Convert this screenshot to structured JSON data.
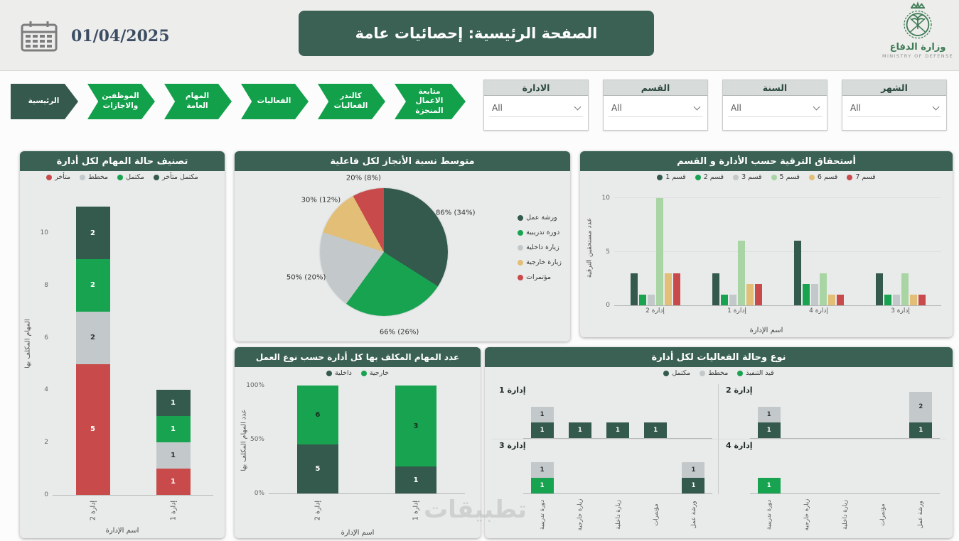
{
  "header": {
    "date": "01/04/2025",
    "title": "الصفحة الرئيسية: إحصائيات عامة",
    "ministry_ar": "وزارة الدفاع",
    "ministry_en": "MINISTRY OF DEFENSE"
  },
  "nav": {
    "items": [
      {
        "label": "الرئيسية",
        "active": true
      },
      {
        "label": "الموظفين والاجازات",
        "active": false
      },
      {
        "label": "المهام العامة",
        "active": false
      },
      {
        "label": "الفعاليات",
        "active": false
      },
      {
        "label": "كالندر الفعاليات",
        "active": false
      },
      {
        "label": "متابعة الاعمال المنجزة",
        "active": false
      }
    ]
  },
  "slicers": [
    {
      "label": "الشهر",
      "value": "All"
    },
    {
      "label": "السنة",
      "value": "All"
    },
    {
      "label": "القسم",
      "value": "All"
    },
    {
      "label": "الادارة",
      "value": "All"
    }
  ],
  "watermark": "تطبيقات",
  "colors": {
    "primary_dark": "#3a6154",
    "nav_green": "#12a04b",
    "series_dark": "#335a4c",
    "series_green": "#18a351",
    "series_gray": "#c3c9cb",
    "series_light_green": "#a9d5a4",
    "series_gold": "#e2be77",
    "series_red": "#c94a4a"
  },
  "chart_data": [
    {
      "type": "bar",
      "variant": "stacked",
      "title": "تصنيف حالة المهام لكل أدارة",
      "xlabel": "اسم الإدارة",
      "ylabel": "المهام المكلف بها",
      "categories": [
        "إدارة 2",
        "إدارة 1"
      ],
      "series": [
        {
          "name": "متأخر",
          "color": "#c94a4a",
          "label_color": "#ffffff",
          "values": [
            5,
            1
          ]
        },
        {
          "name": "مخطط",
          "color": "#c3c9cb",
          "label_color": "#333333",
          "values": [
            2,
            1
          ]
        },
        {
          "name": "مكتمل",
          "color": "#18a351",
          "label_color": "#ffffff",
          "values": [
            2,
            1
          ]
        },
        {
          "name": "مكتمل متأخر",
          "color": "#335a4c",
          "label_color": "#ffffff",
          "values": [
            2,
            1
          ]
        }
      ],
      "ymax": 11.6,
      "yticks": [
        0,
        2,
        4,
        6,
        8,
        10
      ],
      "legend_position": "top"
    },
    {
      "type": "pie",
      "title": "متوسط نسبة الأنجاز لكل فاعلية",
      "slices": [
        {
          "name": "ورشة عمل",
          "color": "#335a4c",
          "value_pct": 34,
          "label": "86% (34%)"
        },
        {
          "name": "دورة تدريبية",
          "color": "#18a351",
          "value_pct": 26,
          "label": "66% (26%)"
        },
        {
          "name": "زيارة داخلية",
          "color": "#c3c9cb",
          "value_pct": 20,
          "label": "50% (20%)"
        },
        {
          "name": "زيارة خارجية",
          "color": "#e2be77",
          "value_pct": 12,
          "label": "30% (12%)"
        },
        {
          "name": "مؤتمرات",
          "color": "#c94a4a",
          "value_pct": 8,
          "label": "20% (8%)"
        }
      ],
      "legend_position": "right"
    },
    {
      "type": "bar",
      "variant": "grouped",
      "title": "أستحقاق الترقية حسب الأدارة و القسم",
      "xlabel": "اسم الإدارة",
      "ylabel": "عدد مستحقين الترقية",
      "categories": [
        "إدارة 2",
        "إدارة 1",
        "إدارة 4",
        "إدارة 3"
      ],
      "series": [
        {
          "name": "قسم 1",
          "color": "#335a4c",
          "values": [
            3,
            3,
            6,
            3
          ]
        },
        {
          "name": "قسم 2",
          "color": "#18a351",
          "values": [
            1,
            1,
            2,
            1
          ]
        },
        {
          "name": "قسم 3",
          "color": "#c3c9cb",
          "values": [
            1,
            1,
            2,
            1
          ]
        },
        {
          "name": "قسم 5",
          "color": "#a9d5a4",
          "values": [
            10,
            6,
            3,
            3
          ]
        },
        {
          "name": "قسم 6",
          "color": "#e2be77",
          "values": [
            3,
            2,
            1,
            1
          ]
        },
        {
          "name": "قسم 7",
          "color": "#c94a4a",
          "values": [
            3,
            2,
            1,
            1
          ]
        }
      ],
      "ymax": 10.8,
      "yticks": [
        0,
        5,
        10
      ],
      "legend_position": "top"
    },
    {
      "type": "bar",
      "variant": "stacked-100",
      "title": "عدد المهام المكلف بها كل أدارة حسب نوع العمل",
      "xlabel": "اسم الإدارة",
      "ylabel": "عدد المهام المكلف بها",
      "categories": [
        "إدارة 2",
        "إدارة 1"
      ],
      "series": [
        {
          "name": "داخلية",
          "color": "#335a4c",
          "label_color": "#ffffff",
          "values": [
            5,
            1
          ]
        },
        {
          "name": "خارجية",
          "color": "#18a351",
          "label_color": "#14321f",
          "values": [
            6,
            3
          ]
        }
      ],
      "yticks_pct": [
        "0%",
        "50%",
        "100%"
      ],
      "legend_position": "top"
    },
    {
      "type": "bar",
      "variant": "small-multiples-stacked",
      "title": "نوع وحالة الفعاليات لكل أدارة",
      "categories": [
        "دورة تدريبية",
        "زيارة خارجية",
        "زيارة داخلية",
        "مؤتمرات",
        "ورشة عمل"
      ],
      "legend": [
        {
          "name": "مكتمل",
          "color": "#335a4c",
          "label_color": "#ffffff"
        },
        {
          "name": "مخطط",
          "color": "#c3c9cb",
          "label_color": "#333333"
        },
        {
          "name": "قيد التنفيذ",
          "color": "#18a351",
          "label_color": "#ffffff"
        }
      ],
      "stack_order": [
        "مكتمل",
        "قيد التنفيذ",
        "مخطط"
      ],
      "ymax": 3.3,
      "panels": [
        {
          "name": "إدارة 1",
          "values": {
            "مكتمل": [
              1,
              1,
              1,
              1,
              0
            ],
            "قيد التنفيذ": [
              0,
              0,
              0,
              0,
              0
            ],
            "مخطط": [
              1,
              0,
              0,
              0,
              0
            ]
          }
        },
        {
          "name": "إدارة 2",
          "values": {
            "مكتمل": [
              1,
              0,
              0,
              0,
              1
            ],
            "قيد التنفيذ": [
              0,
              0,
              0,
              0,
              0
            ],
            "مخطط": [
              1,
              0,
              0,
              0,
              2
            ]
          }
        },
        {
          "name": "إدارة 3",
          "values": {
            "مكتمل": [
              0,
              0,
              0,
              0,
              1
            ],
            "قيد التنفيذ": [
              1,
              0,
              0,
              0,
              0
            ],
            "مخطط": [
              1,
              0,
              0,
              0,
              1
            ]
          }
        },
        {
          "name": "إدارة 4",
          "values": {
            "مكتمل": [
              0,
              0,
              0,
              0,
              0
            ],
            "قيد التنفيذ": [
              1,
              0,
              0,
              0,
              0
            ],
            "مخطط": [
              0,
              0,
              0,
              0,
              0
            ]
          }
        }
      ],
      "legend_position": "top"
    }
  ]
}
